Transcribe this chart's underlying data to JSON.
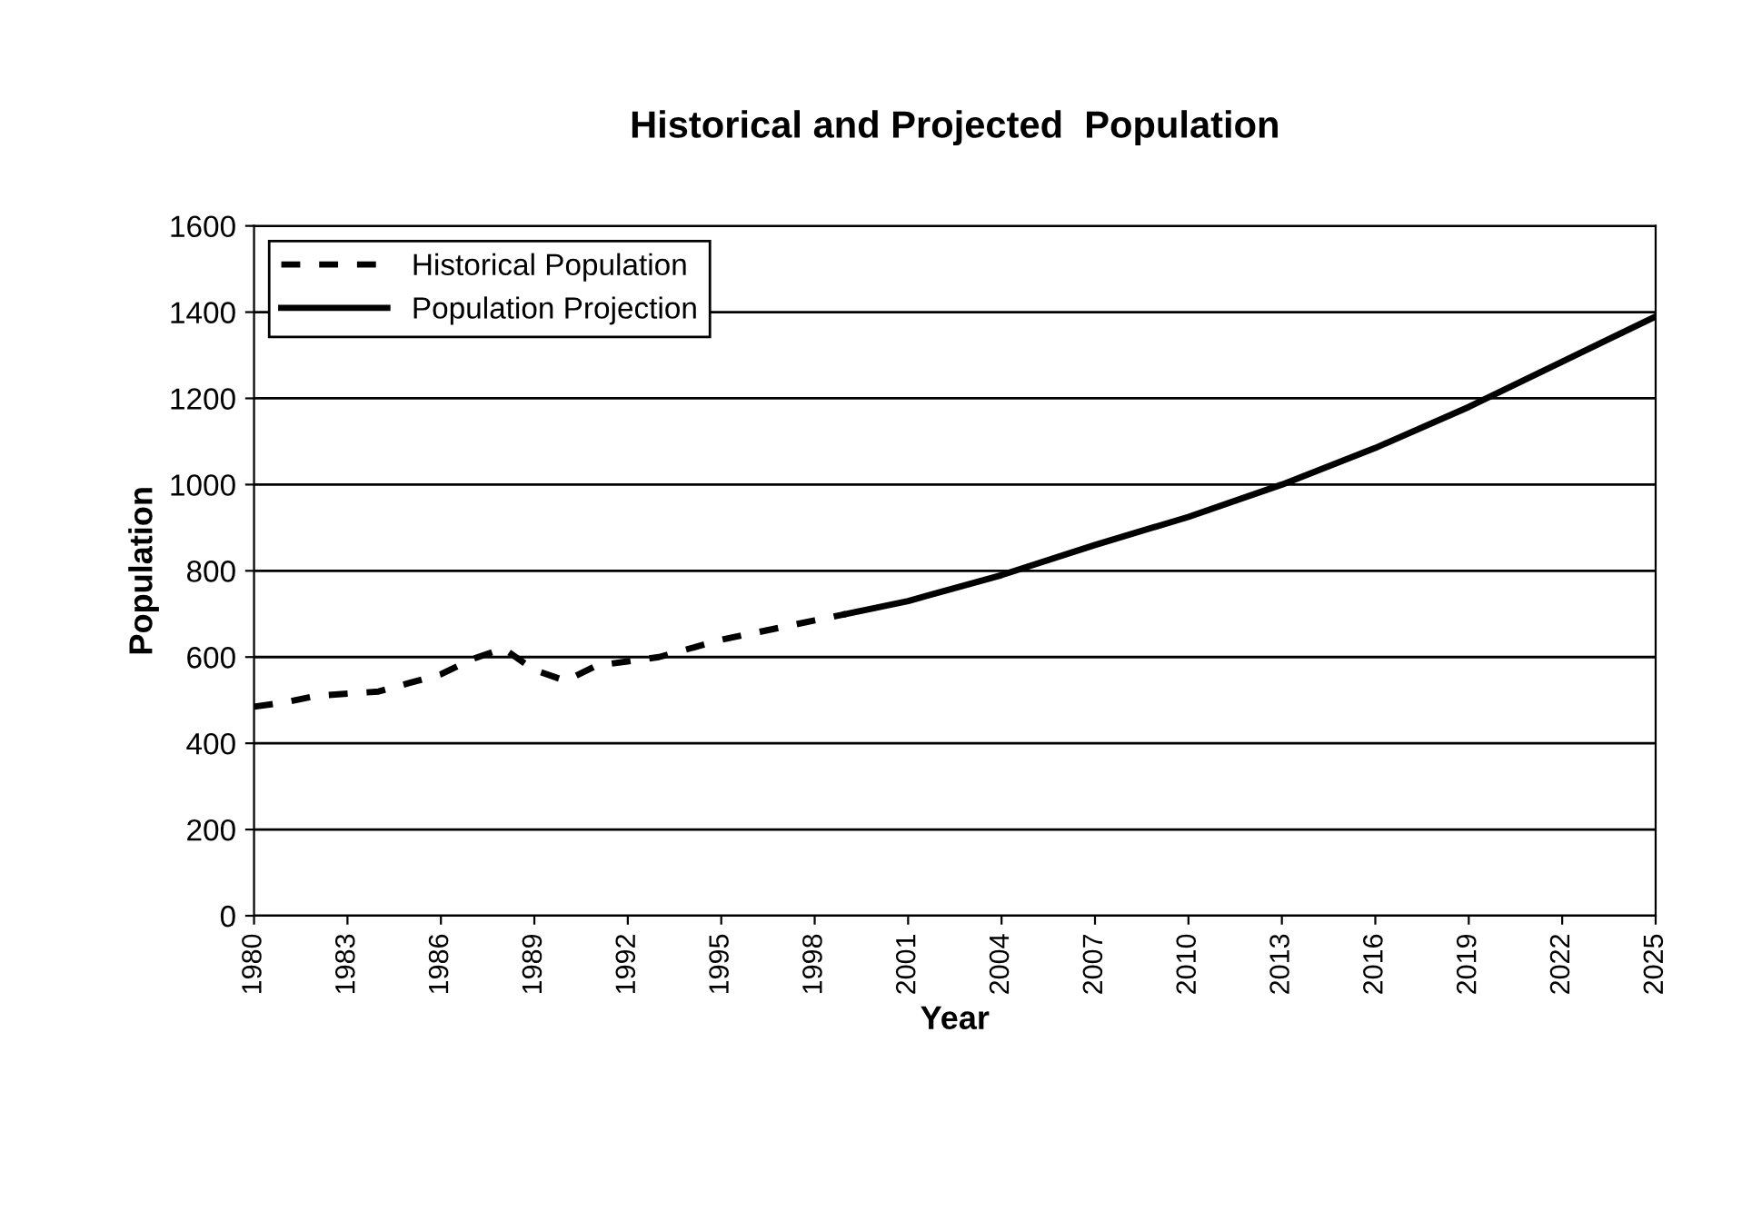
{
  "chart_data": {
    "type": "line",
    "title": "Historical and Projected  Population",
    "xlabel": "Year",
    "ylabel": "Population",
    "xlim": [
      1980,
      2025
    ],
    "xticks": [
      1980,
      1983,
      1986,
      1989,
      1992,
      1995,
      1998,
      2001,
      2004,
      2007,
      2010,
      2013,
      2016,
      2019,
      2022,
      2025
    ],
    "ylim": [
      0,
      1600
    ],
    "yticks": [
      0,
      200,
      400,
      600,
      800,
      1000,
      1200,
      1400,
      1600
    ],
    "grid": "y",
    "legend": "top left",
    "series": [
      {
        "name": "Historical Population",
        "color": "#000000",
        "line_style": "dashed",
        "x": [
          1980,
          1981,
          1982,
          1983,
          1984,
          1985,
          1986,
          1987,
          1988,
          1989,
          1990,
          1991,
          1992,
          1993,
          1994,
          1995,
          1996,
          1997,
          1998,
          1999
        ],
        "values": [
          485,
          495,
          510,
          515,
          520,
          540,
          560,
          595,
          620,
          570,
          545,
          580,
          590,
          600,
          620,
          640,
          655,
          670,
          685,
          700
        ]
      },
      {
        "name": "Population Projection",
        "color": "#000000",
        "line_style": "solid",
        "x": [
          1999,
          2001,
          2004,
          2007,
          2010,
          2013,
          2016,
          2019,
          2022,
          2025
        ],
        "values": [
          700,
          730,
          790,
          860,
          925,
          1000,
          1085,
          1180,
          1285,
          1390
        ]
      }
    ]
  }
}
